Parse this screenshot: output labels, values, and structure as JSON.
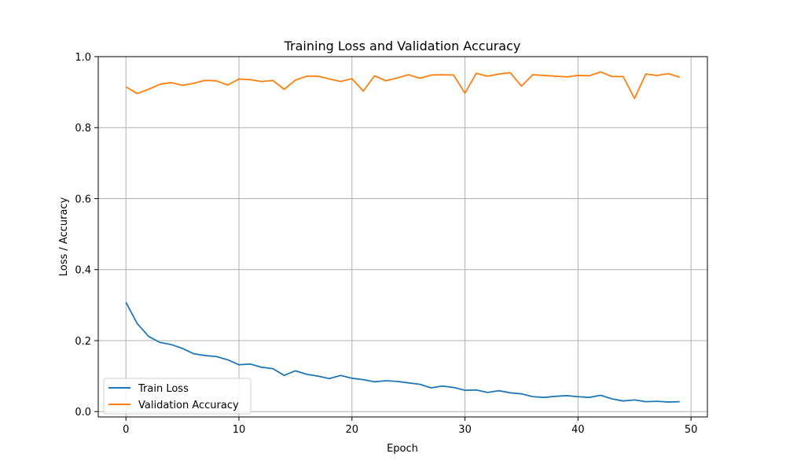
{
  "chart_data": {
    "type": "line",
    "title": "Training Loss and Validation Accuracy",
    "xlabel": "Epoch",
    "ylabel": "Loss / Accuracy",
    "xlim": [
      -2.45,
      51.45
    ],
    "ylim": [
      -0.015,
      1.0
    ],
    "xticks": [
      0,
      10,
      20,
      30,
      40,
      50
    ],
    "yticks": [
      0.0,
      0.2,
      0.4,
      0.6,
      0.8,
      1.0
    ],
    "xtick_labels": [
      "0",
      "10",
      "20",
      "30",
      "40",
      "50"
    ],
    "ytick_labels": [
      "0.0",
      "0.2",
      "0.4",
      "0.6",
      "0.8",
      "1.0"
    ],
    "grid": true,
    "legend_position": "lower-left",
    "x": [
      0,
      1,
      2,
      3,
      4,
      5,
      6,
      7,
      8,
      9,
      10,
      11,
      12,
      13,
      14,
      15,
      16,
      17,
      18,
      19,
      20,
      21,
      22,
      23,
      24,
      25,
      26,
      27,
      28,
      29,
      30,
      31,
      32,
      33,
      34,
      35,
      36,
      37,
      38,
      39,
      40,
      41,
      42,
      43,
      44,
      45,
      46,
      47,
      48,
      49
    ],
    "series": [
      {
        "name": "Train Loss",
        "color": "#1f77b4",
        "values": [
          0.308,
          0.248,
          0.212,
          0.195,
          0.189,
          0.178,
          0.163,
          0.158,
          0.155,
          0.146,
          0.132,
          0.134,
          0.125,
          0.121,
          0.102,
          0.115,
          0.105,
          0.1,
          0.093,
          0.102,
          0.094,
          0.09,
          0.084,
          0.087,
          0.085,
          0.081,
          0.077,
          0.067,
          0.072,
          0.068,
          0.06,
          0.061,
          0.054,
          0.059,
          0.053,
          0.05,
          0.042,
          0.04,
          0.043,
          0.045,
          0.042,
          0.04,
          0.046,
          0.036,
          0.03,
          0.033,
          0.028,
          0.029,
          0.027,
          0.028
        ]
      },
      {
        "name": "Validation Accuracy",
        "color": "#ff7f0e",
        "values": [
          0.915,
          0.896,
          0.908,
          0.922,
          0.927,
          0.919,
          0.925,
          0.933,
          0.932,
          0.92,
          0.937,
          0.935,
          0.93,
          0.933,
          0.908,
          0.934,
          0.945,
          0.945,
          0.937,
          0.93,
          0.938,
          0.903,
          0.946,
          0.932,
          0.94,
          0.949,
          0.939,
          0.948,
          0.949,
          0.948,
          0.897,
          0.953,
          0.945,
          0.951,
          0.955,
          0.917,
          0.949,
          0.947,
          0.945,
          0.943,
          0.947,
          0.946,
          0.957,
          0.944,
          0.944,
          0.882,
          0.951,
          0.947,
          0.952,
          0.942
        ]
      }
    ]
  }
}
